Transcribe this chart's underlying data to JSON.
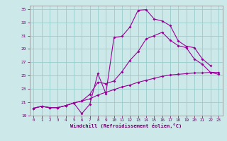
{
  "xlabel": "Windchill (Refroidissement éolien,°C)",
  "background_color": "#cce8e8",
  "line_color": "#990099",
  "grid_color": "#99cccc",
  "xlim": [
    -0.5,
    23.5
  ],
  "ylim": [
    19,
    35.5
  ],
  "xticks": [
    0,
    1,
    2,
    3,
    4,
    5,
    6,
    7,
    8,
    9,
    10,
    11,
    12,
    13,
    14,
    15,
    16,
    17,
    18,
    19,
    20,
    21,
    22,
    23
  ],
  "yticks": [
    19,
    21,
    23,
    25,
    27,
    29,
    31,
    33,
    35
  ],
  "line1_x": [
    0,
    1,
    2,
    3,
    4,
    5,
    6,
    7,
    8,
    9,
    10,
    11,
    12,
    13,
    14,
    15,
    16,
    17,
    18,
    19,
    20,
    21,
    22
  ],
  "line1_y": [
    20.1,
    20.4,
    20.2,
    20.2,
    20.5,
    20.9,
    19.3,
    20.7,
    25.3,
    22.3,
    30.7,
    30.9,
    32.3,
    34.8,
    34.9,
    33.5,
    33.2,
    32.5,
    30.2,
    29.4,
    29.2,
    27.5,
    26.5
  ],
  "line2_x": [
    0,
    1,
    2,
    3,
    4,
    5,
    6,
    7,
    8,
    9,
    10,
    11,
    12,
    13,
    14,
    15,
    16,
    17,
    18,
    19,
    20,
    21,
    22,
    23
  ],
  "line2_y": [
    20.1,
    20.4,
    20.2,
    20.2,
    20.5,
    20.9,
    21.2,
    22.2,
    24.0,
    23.8,
    24.2,
    25.6,
    27.3,
    28.6,
    30.5,
    31.0,
    31.5,
    30.3,
    29.5,
    29.2,
    27.5,
    26.7,
    25.5,
    25.2
  ],
  "line3_x": [
    0,
    1,
    2,
    3,
    4,
    5,
    6,
    7,
    8,
    9,
    10,
    11,
    12,
    13,
    14,
    15,
    16,
    17,
    18,
    19,
    20,
    21,
    22,
    23
  ],
  "line3_y": [
    20.1,
    20.4,
    20.2,
    20.2,
    20.5,
    20.9,
    21.2,
    21.5,
    22.1,
    22.5,
    22.9,
    23.3,
    23.6,
    24.0,
    24.3,
    24.6,
    24.9,
    25.1,
    25.2,
    25.3,
    25.4,
    25.4,
    25.5,
    25.5
  ]
}
